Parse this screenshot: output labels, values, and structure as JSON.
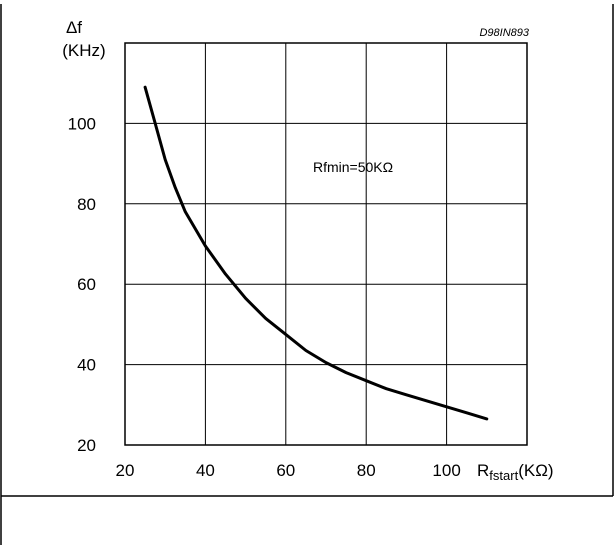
{
  "figure_code": "D98IN893",
  "chart_data": {
    "type": "line",
    "ylabel_symbol": "Δf",
    "ylabel_unit": "(KHz)",
    "xlabel_main": "R",
    "xlabel_sub": "fstart",
    "xlabel_unit": "(KΩ)",
    "annotation": "Rfmin=50KΩ",
    "xlim": [
      20,
      120
    ],
    "ylim": [
      20,
      120
    ],
    "x_ticks": [
      20,
      40,
      60,
      80,
      100
    ],
    "y_ticks": [
      20,
      40,
      60,
      80,
      100
    ],
    "grid": true,
    "series": [
      {
        "x": [
          25,
          27.5,
          30,
          32.5,
          35,
          40,
          45,
          50,
          55,
          60,
          65,
          70,
          75,
          80,
          85,
          90,
          95,
          100,
          105,
          110
        ],
        "y": [
          109,
          100,
          91,
          84,
          78,
          69.5,
          62.5,
          56.5,
          51.5,
          47.5,
          43.5,
          40.5,
          38,
          36,
          34,
          32.5,
          31,
          29.5,
          28,
          26.5
        ]
      }
    ]
  }
}
